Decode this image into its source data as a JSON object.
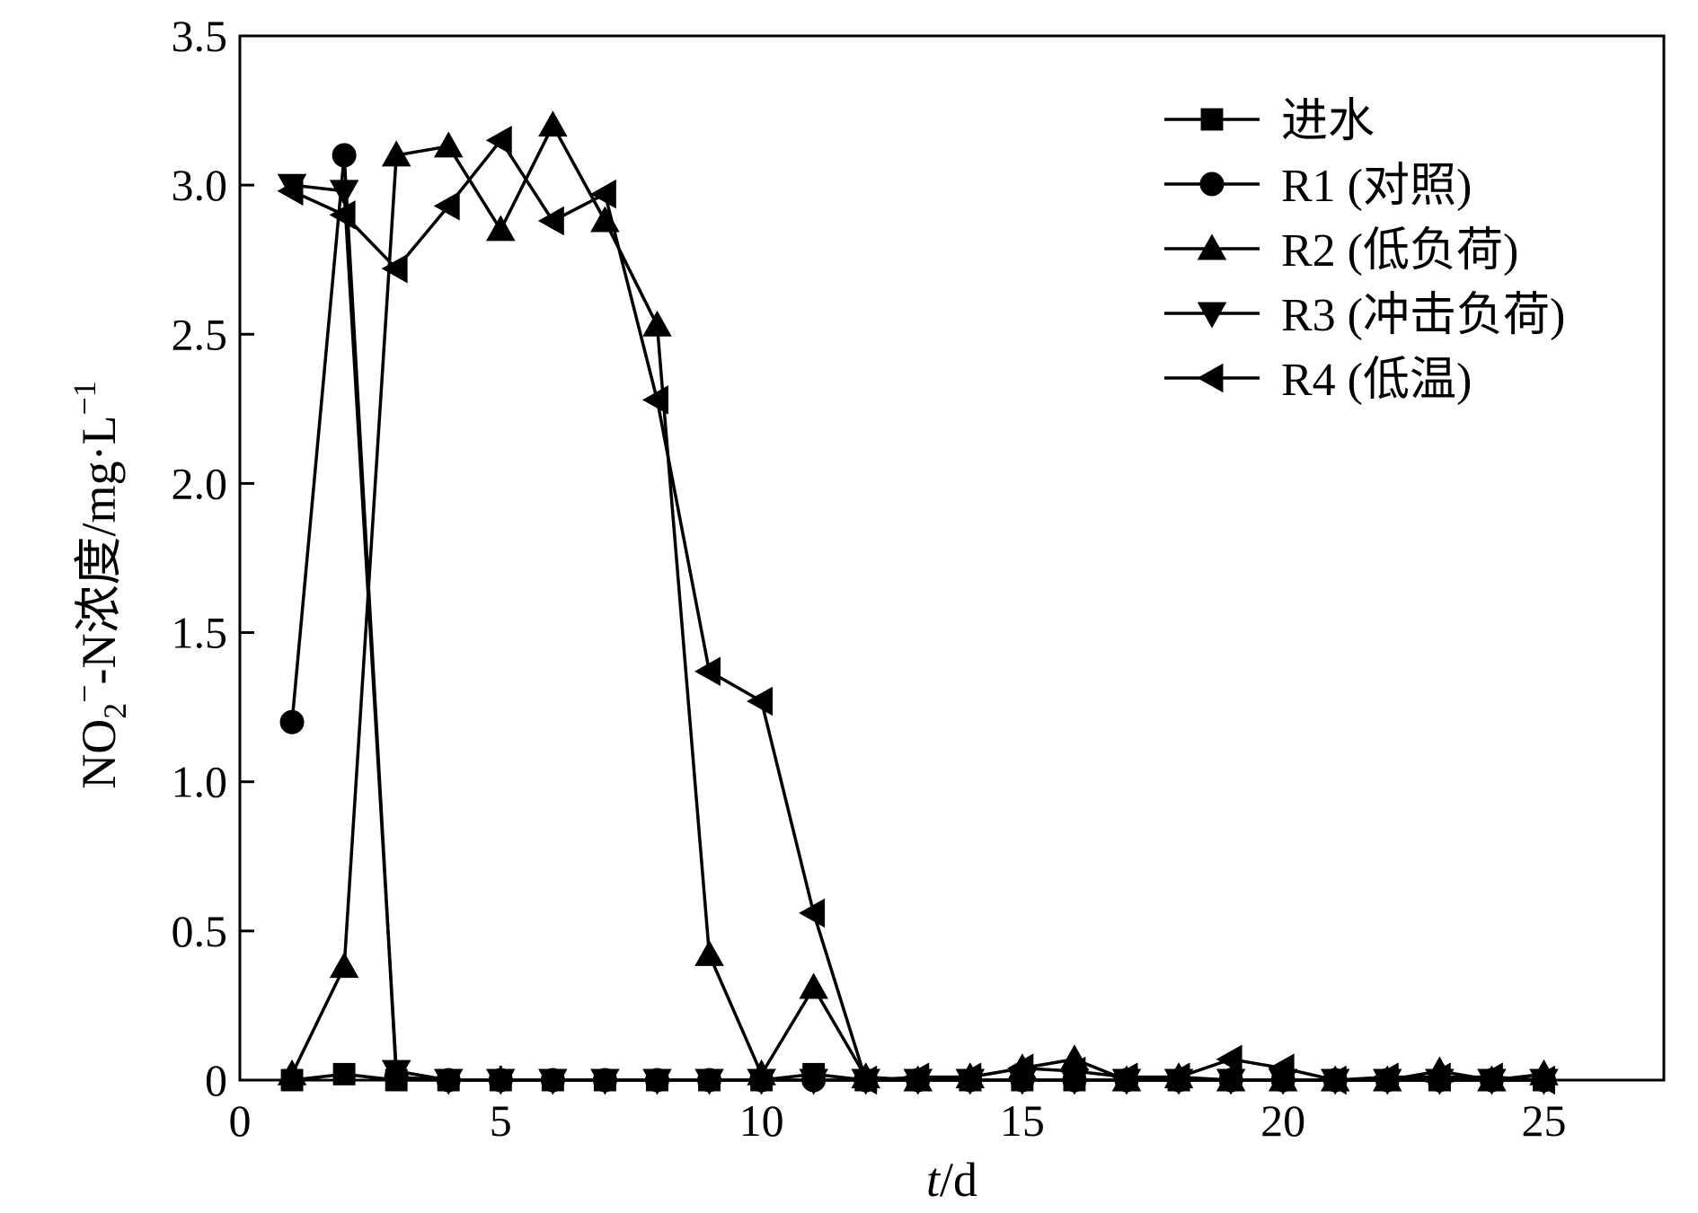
{
  "chart_data": {
    "type": "line",
    "xlabel_italic": "t",
    "xlabel_rest": "/d",
    "ylabel": {
      "part1": "NO",
      "sub": "2",
      "sup": "−",
      "part2": "-N浓度/mg·L",
      "unit_sup": "−1"
    },
    "xlim": [
      0,
      27.3
    ],
    "ylim": [
      0,
      3.5
    ],
    "xticks": [
      0,
      5,
      10,
      15,
      20,
      25
    ],
    "xtick_labels": [
      "0",
      "5",
      "10",
      "15",
      "20",
      "25"
    ],
    "yticks": [
      0,
      0.5,
      1.0,
      1.5,
      2.0,
      2.5,
      3.0,
      3.5
    ],
    "ytick_labels": [
      "0",
      "0.5",
      "1.0",
      "1.5",
      "2.0",
      "2.5",
      "3.0",
      "3.5"
    ],
    "grid": false,
    "legend_position": "top-right",
    "series": [
      {
        "name": "进水",
        "marker": "square",
        "x": [
          1,
          2,
          3,
          4,
          5,
          6,
          7,
          8,
          9,
          10,
          11,
          12,
          13,
          14,
          15,
          16,
          17,
          18,
          19,
          20,
          21,
          22,
          23,
          24,
          25
        ],
        "y": [
          0.0,
          0.02,
          0.0,
          0.0,
          0.0,
          0.0,
          0.0,
          0.0,
          0.0,
          0.0,
          0.02,
          0.0,
          0.0,
          0.0,
          0.0,
          0.0,
          0.0,
          0.0,
          0.0,
          0.0,
          0.0,
          0.0,
          0.0,
          0.0,
          0.0
        ]
      },
      {
        "name": "R1 (对照)",
        "marker": "circle",
        "x": [
          1,
          2,
          3,
          4,
          5,
          6,
          7,
          8,
          9,
          10,
          11,
          12,
          13,
          14,
          15,
          16,
          17,
          18,
          19,
          20,
          21,
          22,
          23,
          24,
          25
        ],
        "y": [
          1.2,
          3.1,
          0.01,
          0.0,
          0.0,
          0.0,
          0.0,
          0.0,
          0.0,
          0.0,
          0.0,
          0.0,
          0.0,
          0.0,
          0.0,
          0.0,
          0.0,
          0.0,
          0.0,
          0.0,
          0.0,
          0.0,
          0.0,
          0.0,
          0.0
        ]
      },
      {
        "name": "R2 (低负荷)",
        "marker": "triangle-up",
        "x": [
          1,
          2,
          3,
          4,
          5,
          6,
          7,
          8,
          9,
          10,
          11,
          12,
          13,
          14,
          15,
          16,
          17,
          18,
          19,
          20,
          21,
          22,
          23,
          24,
          25
        ],
        "y": [
          0.02,
          0.38,
          3.1,
          3.13,
          2.85,
          3.2,
          2.88,
          2.53,
          0.42,
          0.02,
          0.31,
          0.01,
          0.0,
          0.01,
          0.04,
          0.07,
          0.0,
          0.01,
          0.0,
          0.0,
          0.0,
          0.0,
          0.03,
          0.0,
          0.02
        ]
      },
      {
        "name": "R3 (冲击负荷)",
        "marker": "triangle-down",
        "x": [
          1,
          2,
          3,
          4,
          5,
          6,
          7,
          8,
          9,
          10,
          11,
          12,
          13,
          14,
          15,
          16,
          17,
          18,
          19,
          20,
          21,
          22,
          23,
          24,
          25
        ],
        "y": [
          3.0,
          2.98,
          0.03,
          0.0,
          0.0,
          0.0,
          0.0,
          0.0,
          0.0,
          0.0,
          0.0,
          0.0,
          0.0,
          0.0,
          0.0,
          0.0,
          0.0,
          0.0,
          0.0,
          0.0,
          0.0,
          0.0,
          0.0,
          0.0,
          0.0
        ]
      },
      {
        "name": "R4 (低温)",
        "marker": "triangle-left",
        "x": [
          1,
          2,
          3,
          4,
          5,
          6,
          7,
          8,
          9,
          10,
          11,
          12,
          13,
          14,
          15,
          16,
          17,
          18,
          19,
          20,
          21,
          22,
          23,
          24,
          25
        ],
        "y": [
          2.98,
          2.9,
          2.72,
          2.93,
          3.15,
          2.88,
          2.97,
          2.28,
          1.37,
          1.27,
          0.56,
          0.0,
          0.01,
          0.01,
          0.04,
          0.03,
          0.01,
          0.01,
          0.07,
          0.04,
          0.0,
          0.01,
          0.01,
          0.01,
          0.0
        ]
      }
    ]
  }
}
